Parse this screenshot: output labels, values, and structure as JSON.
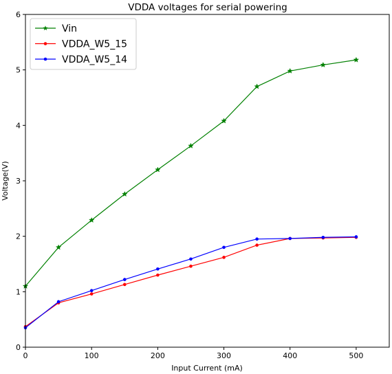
{
  "chart_data": {
    "type": "line",
    "title": "VDDA voltages for serial powering",
    "xlabel": "Input Current (mA)",
    "ylabel": "Voltage(V)",
    "xlim": [
      0,
      550
    ],
    "ylim": [
      0,
      6
    ],
    "xticks": [
      0,
      100,
      200,
      300,
      400,
      500
    ],
    "yticks": [
      0,
      1,
      2,
      3,
      4,
      5,
      6
    ],
    "grid": false,
    "legend": "top-left",
    "x": [
      0,
      50,
      100,
      150,
      200,
      250,
      300,
      350,
      400,
      450,
      500
    ],
    "series": [
      {
        "name": "Vin",
        "color": "#008000",
        "marker": "star",
        "values": [
          1.1,
          1.8,
          2.29,
          2.76,
          3.2,
          3.63,
          4.08,
          4.7,
          4.98,
          5.09,
          5.18
        ]
      },
      {
        "name": "VDDA_W5_15",
        "color": "#ff0000",
        "marker": "dot",
        "values": [
          0.37,
          0.8,
          0.96,
          1.13,
          1.3,
          1.46,
          1.62,
          1.84,
          1.96,
          1.97,
          1.98
        ]
      },
      {
        "name": "VDDA_W5_14",
        "color": "#0000ff",
        "marker": "dot",
        "values": [
          0.35,
          0.82,
          1.02,
          1.22,
          1.41,
          1.59,
          1.8,
          1.95,
          1.96,
          1.98,
          1.99
        ]
      }
    ]
  }
}
